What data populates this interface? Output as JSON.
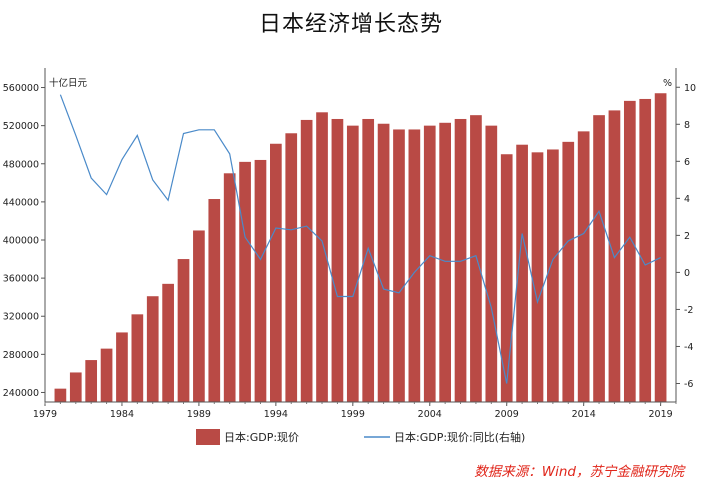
{
  "title": "日本经济增长态势",
  "source_note": "数据来源：Wind，苏宁金融研究院",
  "colors": {
    "bar": "#b94a45",
    "line": "#4a8ac9",
    "source": "#e0261b"
  },
  "chart_data": {
    "type": "bar",
    "title": "日本经济增长态势",
    "left_axis": {
      "unit": "十亿日元",
      "ylim": [
        230000,
        570000
      ],
      "ticks": [
        240000,
        280000,
        320000,
        360000,
        400000,
        440000,
        480000,
        520000,
        560000
      ],
      "tick_labels": [
        "240000",
        "280000",
        "320000",
        "360000",
        "400000",
        "440000",
        "480000",
        "520000",
        "560000"
      ]
    },
    "right_axis": {
      "unit": "%",
      "ylim": [
        -7,
        10.5
      ],
      "ticks": [
        -6,
        -4,
        -2,
        0,
        2,
        4,
        6,
        8,
        10
      ],
      "tick_labels": [
        "-6",
        "-4",
        "-2",
        "0",
        "2",
        "4",
        "6",
        "8",
        "10"
      ]
    },
    "x_axis": {
      "range": [
        1979,
        2020
      ],
      "ticks": [
        1979,
        1984,
        1989,
        1994,
        1999,
        2004,
        2009,
        2014,
        2019
      ],
      "tick_labels": [
        "1979",
        "1984",
        "1989",
        "1994",
        "1999",
        "2004",
        "2009",
        "2014",
        "2019"
      ]
    },
    "series": [
      {
        "name": "日本:GDP:现价",
        "type": "bar",
        "axis": "left",
        "x": [
          1980,
          1981,
          1982,
          1983,
          1984,
          1985,
          1986,
          1987,
          1988,
          1989,
          1990,
          1991,
          1992,
          1993,
          1994,
          1995,
          1996,
          1997,
          1998,
          1999,
          2000,
          2001,
          2002,
          2003,
          2004,
          2005,
          2006,
          2007,
          2008,
          2009,
          2010,
          2011,
          2012,
          2013,
          2014,
          2015,
          2016,
          2017,
          2018,
          2019
        ],
        "values": [
          244000,
          261000,
          274000,
          286000,
          303000,
          322000,
          341000,
          354000,
          380000,
          410000,
          443000,
          470000,
          482000,
          484000,
          501000,
          512000,
          526000,
          534000,
          527000,
          520000,
          527000,
          522000,
          516000,
          516000,
          520000,
          523000,
          527000,
          531000,
          520000,
          490000,
          500000,
          492000,
          495000,
          503000,
          514000,
          531000,
          536000,
          546000,
          548000,
          554000
        ]
      },
      {
        "name": "日本:GDP:现价:同比(右轴)",
        "type": "line",
        "axis": "right",
        "x": [
          1980,
          1981,
          1982,
          1983,
          1984,
          1985,
          1986,
          1987,
          1988,
          1989,
          1990,
          1991,
          1992,
          1993,
          1994,
          1995,
          1996,
          1997,
          1998,
          1999,
          2000,
          2001,
          2002,
          2003,
          2004,
          2005,
          2006,
          2007,
          2008,
          2009,
          2010,
          2011,
          2012,
          2013,
          2014,
          2015,
          2016,
          2017,
          2018,
          2019
        ],
        "values": [
          9.6,
          7.4,
          5.1,
          4.2,
          6.1,
          7.4,
          5.0,
          3.9,
          7.5,
          7.7,
          7.7,
          6.4,
          1.9,
          0.7,
          2.4,
          2.3,
          2.5,
          1.7,
          -1.3,
          -1.3,
          1.3,
          -0.9,
          -1.1,
          0.0,
          0.9,
          0.6,
          0.6,
          0.9,
          -1.9,
          -6.0,
          2.1,
          -1.6,
          0.7,
          1.7,
          2.1,
          3.3,
          0.8,
          1.9,
          0.4,
          0.8
        ]
      }
    ],
    "legend": {
      "placement": "bottom"
    },
    "grid": false
  }
}
